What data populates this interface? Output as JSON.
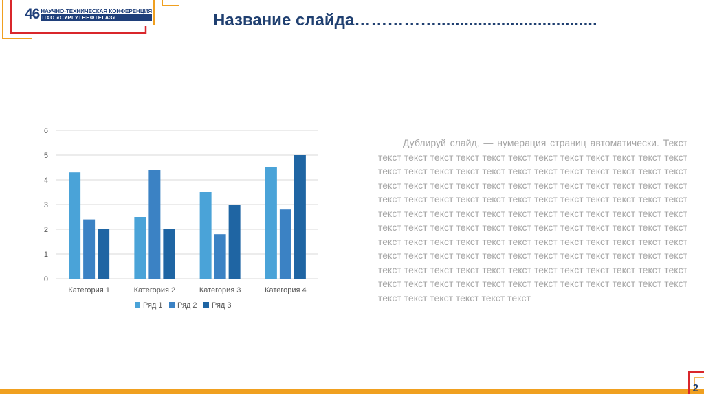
{
  "logo": {
    "number": "46",
    "line1": "НАУЧНО-ТЕХНИЧЕСКАЯ КОНФЕРЕНЦИЯ",
    "line2": "ПАО «СУРГУТНЕФТЕГАЗ»"
  },
  "slide": {
    "title": "Название слайда……………...................................",
    "body": "Дублируй слайд, — нумерация страниц автоматически. Текст текст текст текст текст текст текст текст текст текст текст текст текст текст текст текст текст текст текст текст текст текст текст текст текст текст текст текст текст текст текст текст текст текст текст текст текст текст текст текст текст текст текст текст текст текст текст текст текст текст текст текст текст текст текст текст текст текст текст текст текст текст текст текст текст текст текст текст текст текст текст текст текст текст текст текст текст текст текст текст текст текст текст текст текст текст текст текст текст текст текст текст текст текст текст текст текст текст текст текст текст текст текст текст текст текст текст текст текст текст текст текст текст текст текст текст текст текст текст текст текст текст текст текст текст текст текст",
    "page_number": "2"
  },
  "colors": {
    "title": "#1f3f70",
    "logo_red": "#d9262b",
    "logo_orange": "#f0a020",
    "series1": "#4aa3d8",
    "series2": "#3b82c4",
    "series3": "#1f65a3",
    "grid": "#d9d9d9",
    "axis_text": "#595959"
  },
  "chart_data": {
    "type": "bar",
    "categories": [
      "Категория 1",
      "Категория 2",
      "Категория 3",
      "Категория 4"
    ],
    "series": [
      {
        "name": "Ряд 1",
        "values": [
          4.3,
          2.5,
          3.5,
          4.5
        ]
      },
      {
        "name": "Ряд 2",
        "values": [
          2.4,
          4.4,
          1.8,
          2.8
        ]
      },
      {
        "name": "Ряд 3",
        "values": [
          2,
          2,
          3,
          5
        ]
      }
    ],
    "ylim": [
      0,
      6
    ],
    "yticks": [
      "0",
      "1",
      "2",
      "3",
      "4",
      "5",
      "6"
    ],
    "grid": true,
    "legend": "bottom"
  }
}
